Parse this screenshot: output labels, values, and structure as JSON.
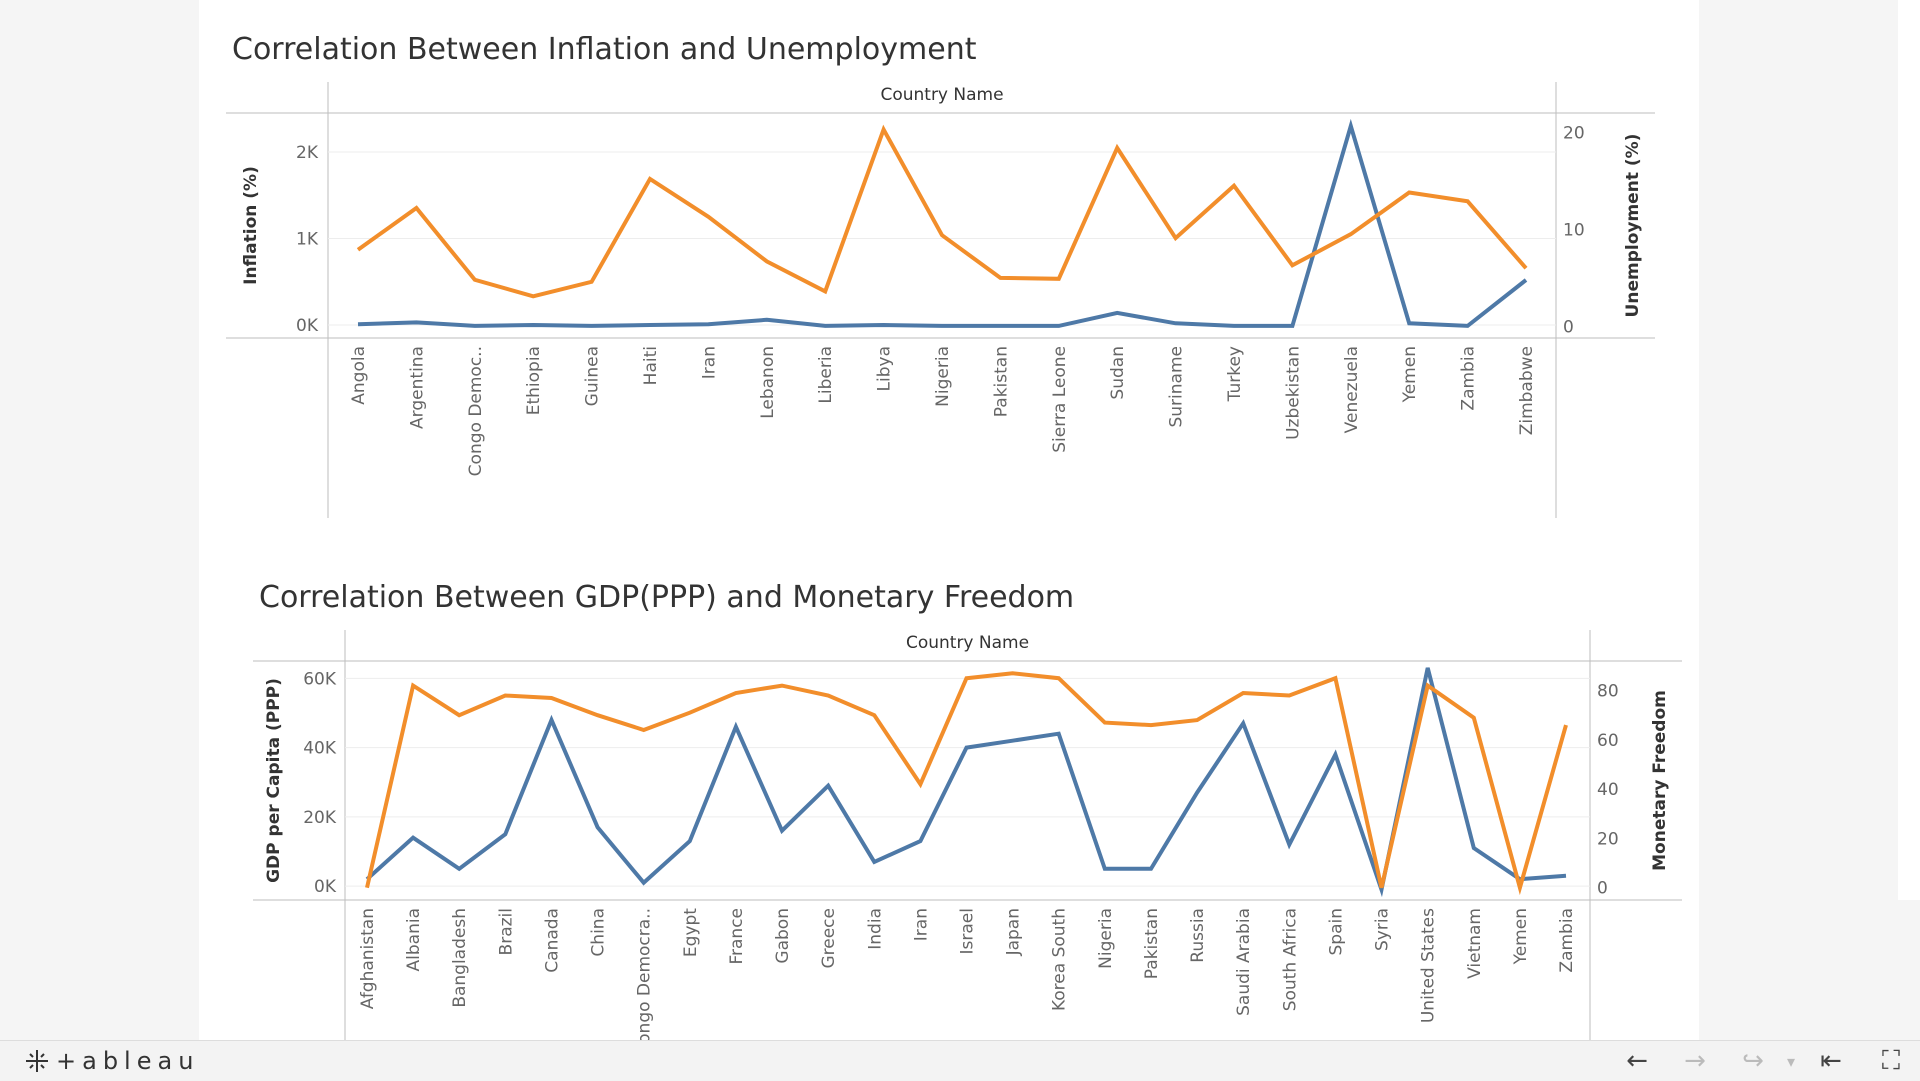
{
  "colors": {
    "orange": "#f28e2b",
    "blue": "#4e79a7",
    "axis": "#bdbdbd",
    "grid": "#ededed",
    "text": "#333333",
    "tick": "#666666"
  },
  "toolbar": {
    "brand": "+ableau",
    "brand_icon": "tableau-logo-icon",
    "buttons": [
      {
        "name": "undo",
        "icon": "arrow-left-icon",
        "glyph": "←",
        "enabled": true
      },
      {
        "name": "redo",
        "icon": "arrow-right-icon",
        "glyph": "→",
        "enabled": false
      },
      {
        "name": "revert",
        "icon": "revert-icon",
        "glyph": "↪",
        "enabled": false
      },
      {
        "name": "revert-menu",
        "icon": "chevron-down-icon",
        "glyph": "▾",
        "enabled": false
      },
      {
        "name": "go-to-start",
        "icon": "first-page-icon",
        "glyph": "⇤",
        "enabled": true
      },
      {
        "name": "fullscreen",
        "icon": "fullscreen-icon",
        "glyph": "⛶",
        "enabled": true
      }
    ]
  },
  "chart_data": [
    {
      "type": "line",
      "title": "Correlation Between Inflation and Unemployment",
      "column_header": "Country Name",
      "categories": [
        "Angola",
        "Argentina",
        "Congo Democ..",
        "Ethiopia",
        "Guinea",
        "Haiti",
        "Iran",
        "Lebanon",
        "Liberia",
        "Libya",
        "Nigeria",
        "Pakistan",
        "Sierra Leone",
        "Sudan",
        "Suriname",
        "Turkey",
        "Uzbekistan",
        "Venezuela",
        "Yemen",
        "Zambia",
        "Zimbabwe"
      ],
      "y_left": {
        "label": "Inflation (%)",
        "range": [
          -150,
          2450
        ],
        "ticks": [
          0,
          1000,
          2000
        ],
        "tick_labels": [
          "0K",
          "1K",
          "2K"
        ]
      },
      "y_right": {
        "label": "Unemployment (%)",
        "range": [
          -1.2,
          22
        ],
        "ticks": [
          0,
          10,
          20
        ],
        "tick_labels": [
          "0",
          "10",
          "20"
        ]
      },
      "series": [
        {
          "axis": "left",
          "color": "#4e79a7",
          "values": [
            10,
            30,
            -10,
            0,
            -10,
            0,
            10,
            60,
            -10,
            0,
            -10,
            -10,
            -10,
            140,
            20,
            -10,
            -10,
            2300,
            20,
            -10,
            520
          ]
        },
        {
          "axis": "right",
          "color": "#f28e2b",
          "values": [
            7.9,
            12.2,
            4.8,
            3.1,
            4.6,
            15.2,
            11.3,
            6.7,
            3.6,
            20.3,
            9.4,
            5.0,
            4.9,
            18.4,
            9.1,
            14.5,
            6.3,
            9.5,
            13.8,
            12.9,
            6.0
          ]
        }
      ],
      "grid": true,
      "legend": "none"
    },
    {
      "type": "line",
      "title": "Correlation Between GDP(PPP) and Monetary Freedom",
      "column_header": "Country Name",
      "categories": [
        "Afghanistan",
        "Albania",
        "Bangladesh",
        "Brazil",
        "Canada",
        "China",
        "Congo Democra..",
        "Egypt",
        "France",
        "Gabon",
        "Greece",
        "India",
        "Iran",
        "Israel",
        "Japan",
        "Korea South",
        "Nigeria",
        "Pakistan",
        "Russia",
        "Saudi Arabia",
        "South Africa",
        "Spain",
        "Syria",
        "United States",
        "Vietnam",
        "Yemen",
        "Zambia"
      ],
      "y_left": {
        "label": "GDP per Capita (PPP)",
        "range": [
          -4000,
          65000
        ],
        "ticks": [
          0,
          20000,
          40000,
          60000
        ],
        "tick_labels": [
          "0K",
          "20K",
          "40K",
          "60K"
        ]
      },
      "y_right": {
        "label": "Monetary Freedom",
        "range": [
          -5,
          92
        ],
        "ticks": [
          0,
          20,
          40,
          60,
          80
        ],
        "tick_labels": [
          "0",
          "20",
          "40",
          "60",
          "80"
        ]
      },
      "series": [
        {
          "axis": "left",
          "color": "#4e79a7",
          "values": [
            2000,
            14000,
            5000,
            15000,
            48000,
            17000,
            1000,
            13000,
            46000,
            16000,
            29000,
            7000,
            13000,
            40000,
            42000,
            44000,
            5000,
            5000,
            27000,
            47000,
            12000,
            38000,
            -1000,
            63000,
            11000,
            2000,
            3000
          ]
        },
        {
          "axis": "right",
          "color": "#f28e2b",
          "values": [
            0,
            82,
            70,
            78,
            77,
            70,
            64,
            71,
            79,
            82,
            78,
            70,
            42,
            85,
            87,
            85,
            67,
            66,
            68,
            79,
            78,
            85,
            0,
            82,
            69,
            0,
            66
          ]
        }
      ],
      "grid": true,
      "legend": "none"
    }
  ]
}
